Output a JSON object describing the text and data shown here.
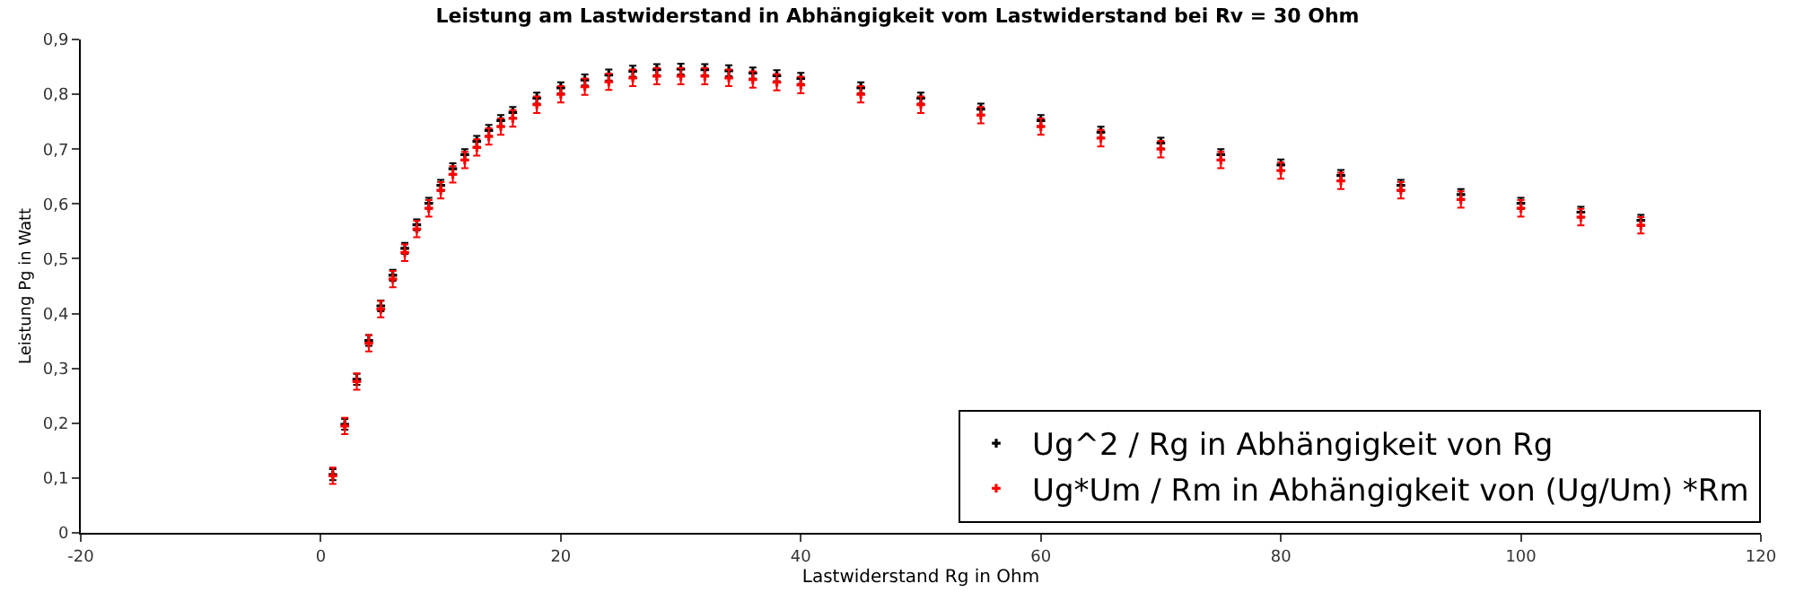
{
  "chart_data": {
    "type": "scatter",
    "title": "Leistung am Lastwiderstand in Abhängigkeit vom Lastwiderstand bei Rv = 30 Ohm",
    "xlabel": "Lastwiderstand Rg in Ohm",
    "ylabel": "Leistung Pg in Watt",
    "x": [
      1,
      2,
      3,
      4,
      5,
      6,
      7,
      8,
      9,
      10,
      11,
      12,
      13,
      14,
      15,
      16,
      18,
      20,
      22,
      24,
      26,
      28,
      30,
      32,
      34,
      36,
      38,
      40,
      45,
      50,
      55,
      60,
      65,
      70,
      75,
      80,
      85,
      90,
      95,
      100,
      105,
      110
    ],
    "series": [
      {
        "name": "Ug^2 / Rg in Abhängigkeit von Rg",
        "color": "#000000",
        "values": [
          0.106,
          0.198,
          0.28,
          0.351,
          0.414,
          0.47,
          0.519,
          0.562,
          0.601,
          0.634,
          0.664,
          0.69,
          0.714,
          0.734,
          0.752,
          0.767,
          0.793,
          0.812,
          0.826,
          0.835,
          0.842,
          0.845,
          0.846,
          0.845,
          0.843,
          0.839,
          0.834,
          0.829,
          0.812,
          0.793,
          0.773,
          0.752,
          0.731,
          0.711,
          0.69,
          0.671,
          0.652,
          0.634,
          0.617,
          0.601,
          0.585,
          0.57
        ],
        "errors": [
          0.01,
          0.01,
          0.01,
          0.01,
          0.01,
          0.01,
          0.01,
          0.01,
          0.01,
          0.01,
          0.01,
          0.01,
          0.01,
          0.01,
          0.01,
          0.01,
          0.01,
          0.01,
          0.01,
          0.01,
          0.01,
          0.01,
          0.01,
          0.01,
          0.01,
          0.01,
          0.01,
          0.01,
          0.01,
          0.01,
          0.01,
          0.01,
          0.01,
          0.01,
          0.01,
          0.01,
          0.01,
          0.01,
          0.01,
          0.01,
          0.01,
          0.01
        ]
      },
      {
        "name": "Ug*Um / Rm in Abhängigkeit von (Ug/Um) *Rm",
        "color": "#ff0000",
        "values": [
          0.104,
          0.195,
          0.276,
          0.346,
          0.408,
          0.463,
          0.511,
          0.554,
          0.592,
          0.625,
          0.654,
          0.68,
          0.703,
          0.723,
          0.741,
          0.756,
          0.781,
          0.8,
          0.814,
          0.823,
          0.83,
          0.833,
          0.833,
          0.833,
          0.83,
          0.827,
          0.822,
          0.817,
          0.8,
          0.781,
          0.762,
          0.741,
          0.72,
          0.7,
          0.68,
          0.661,
          0.642,
          0.625,
          0.608,
          0.592,
          0.576,
          0.561
        ],
        "errors": [
          0.015,
          0.015,
          0.015,
          0.015,
          0.015,
          0.015,
          0.015,
          0.015,
          0.015,
          0.015,
          0.015,
          0.015,
          0.015,
          0.015,
          0.015,
          0.015,
          0.015,
          0.015,
          0.015,
          0.015,
          0.015,
          0.015,
          0.015,
          0.015,
          0.015,
          0.015,
          0.015,
          0.015,
          0.015,
          0.015,
          0.015,
          0.015,
          0.015,
          0.015,
          0.015,
          0.015,
          0.015,
          0.015,
          0.015,
          0.015,
          0.015,
          0.015
        ]
      }
    ],
    "xlim": [
      -20,
      120
    ],
    "xticks": [
      -20,
      0,
      20,
      40,
      60,
      80,
      100,
      120
    ],
    "ylim": [
      0,
      0.9
    ],
    "yticks": [
      0,
      {
        "value": 0.1,
        "label": "0,1"
      },
      {
        "value": 0.2,
        "label": "0,2"
      },
      {
        "value": 0.3,
        "label": "0,3"
      },
      {
        "value": 0.4,
        "label": "0,4"
      },
      {
        "value": 0.5,
        "label": "0,5"
      },
      {
        "value": 0.6,
        "label": "0,6"
      },
      {
        "value": 0.7,
        "label": "0,7"
      },
      {
        "value": 0.8,
        "label": "0,8"
      },
      {
        "value": 0.9,
        "label": "0,9"
      }
    ],
    "legend": "bottom right",
    "marker": "cross"
  }
}
